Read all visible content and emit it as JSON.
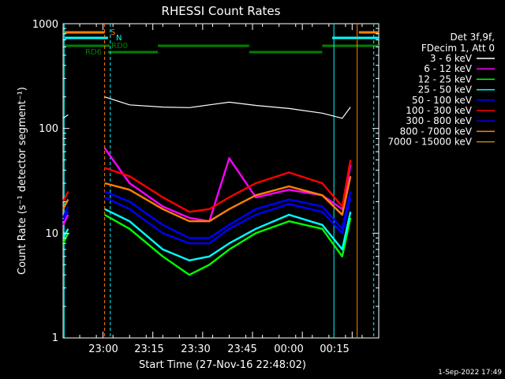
{
  "chart_data": {
    "type": "line",
    "title": "RHESSI Count Rates",
    "ylabel": "Count Rate (s⁻¹ detector segment⁻¹)",
    "xlabel": "Start Time (27-Nov-16 22:48:02)",
    "yscale": "log",
    "ylim": [
      1,
      1000
    ],
    "xlim_minutes_after_start": [
      0,
      95
    ],
    "y_tick_labels": [
      "1",
      "10",
      "100",
      "1000"
    ],
    "x_tick_labels": [
      "23:00",
      "23:15",
      "23:30",
      "23:45",
      "00:00",
      "00:15"
    ],
    "x_tick_minutes_after_start": [
      12,
      27,
      42,
      57,
      72,
      87
    ],
    "legend_header": [
      "Det 3f,9f,",
      "FDecim 1, Att 0"
    ],
    "legend_position": "right",
    "series": [
      {
        "name": "3 - 6 keV",
        "color": "#ffffff",
        "values": [
          125,
          135,
          200,
          168,
          160,
          158,
          168,
          178,
          166,
          155,
          140,
          125,
          160
        ]
      },
      {
        "name": "6 - 12 keV",
        "color": "#ff00ff",
        "values": [
          12,
          15,
          65,
          30,
          18,
          14,
          13,
          52,
          22,
          26,
          23,
          17,
          45
        ]
      },
      {
        "name": "12 - 25 keV",
        "color": "#00ff00",
        "values": [
          8,
          10,
          15,
          11,
          6,
          4,
          5,
          7,
          10,
          13,
          11,
          6,
          14
        ]
      },
      {
        "name": "25 - 50 keV",
        "color": "#00ffff",
        "values": [
          9,
          11,
          17,
          13,
          7,
          5.5,
          6,
          8,
          11,
          15,
          12,
          7,
          16
        ]
      },
      {
        "name": "50 - 100 keV",
        "color": "#0000ff",
        "values": [
          13,
          16,
          22,
          17,
          10,
          8,
          8,
          11,
          15,
          19,
          16,
          10,
          22
        ]
      },
      {
        "name": "100 - 300 keV",
        "color": "#ff0000",
        "values": [
          20,
          25,
          42,
          35,
          22,
          16,
          17,
          22,
          30,
          38,
          30,
          18,
          50
        ]
      },
      {
        "name": "300 - 800 keV",
        "color": "#0000ff",
        "values": [
          14,
          18,
          25,
          20,
          12,
          9,
          9,
          12,
          17,
          21,
          18,
          11,
          25
        ]
      },
      {
        "name": "800 - 7000 keV",
        "color": "#ff8000",
        "values": [
          17,
          21,
          30,
          26,
          17,
          13,
          13,
          17,
          23,
          28,
          23,
          15,
          35
        ]
      },
      {
        "name": "7000 - 15000 keV",
        "color": "#b8860b",
        "values": []
      }
    ],
    "x_minutes": [
      0,
      1.5,
      12.5,
      20,
      30,
      38,
      44,
      50,
      58,
      68,
      78,
      84,
      86.5
    ],
    "data_gaps_minutes": [
      [
        2,
        12
      ]
    ],
    "flag_labels": [
      "S",
      "N",
      "RD0",
      "RD6"
    ],
    "footer_date": "1-Sep-2022 17:49"
  }
}
